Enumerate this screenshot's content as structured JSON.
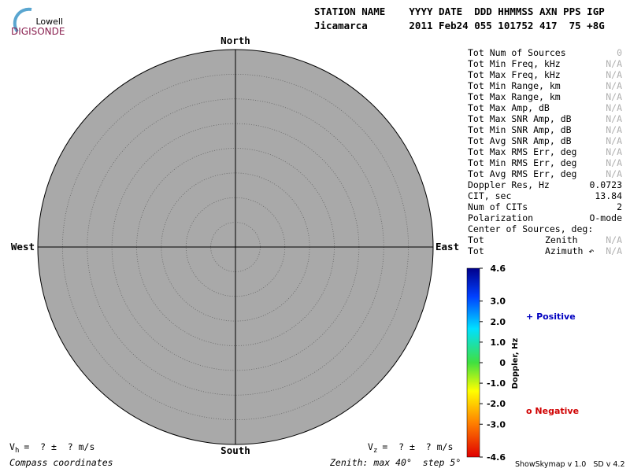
{
  "logo": {
    "line1": "Lowell",
    "line2": "DIGISONDE"
  },
  "header": {
    "labels": "STATION NAME    YYYY DATE  DDD HHMMSS AXN PPS IGP",
    "values": "Jicamarca       2011 Feb24 055 101752 417  75 +8G"
  },
  "compass": {
    "north": "North",
    "south": "South",
    "east": "East",
    "west": "West"
  },
  "stats": [
    {
      "label": "Tot Num of Sources",
      "value": "0",
      "muted": true
    },
    {
      "label": "Tot Min Freq, kHz",
      "value": "N/A",
      "muted": true
    },
    {
      "label": "Tot Max Freq, kHz",
      "value": "N/A",
      "muted": true
    },
    {
      "label": "Tot Min Range, km",
      "value": "N/A",
      "muted": true
    },
    {
      "label": "Tot Max Range, km",
      "value": "N/A",
      "muted": true
    },
    {
      "label": "Tot Max Amp, dB",
      "value": "N/A",
      "muted": true
    },
    {
      "label": "Tot Max SNR Amp, dB",
      "value": "N/A",
      "muted": true
    },
    {
      "label": "Tot Min SNR Amp, dB",
      "value": "N/A",
      "muted": true
    },
    {
      "label": "Tot Avg SNR Amp, dB",
      "value": "N/A",
      "muted": true
    },
    {
      "label": "Tot Max RMS Err, deg",
      "value": "N/A",
      "muted": true
    },
    {
      "label": "Tot Min RMS Err, deg",
      "value": "N/A",
      "muted": true
    },
    {
      "label": "Tot Avg RMS Err, deg",
      "value": "N/A",
      "muted": true
    },
    {
      "label": "Doppler Res, Hz",
      "value": "0.0723",
      "muted": false
    },
    {
      "label": "CIT, sec",
      "value": "13.84",
      "muted": false
    },
    {
      "label": "Num of CITs",
      "value": "2",
      "muted": false
    },
    {
      "label": "Polarization",
      "value": "O-mode",
      "muted": false
    }
  ],
  "center": {
    "title": "Center of Sources, deg:",
    "rows": [
      {
        "label": "Tot",
        "sub": "Zenith",
        "value": "N/A"
      },
      {
        "label": "Tot",
        "sub": "Azimuth ↶",
        "value": "N/A"
      }
    ]
  },
  "colorbar": {
    "title": "Doppler, Hz",
    "lim": [
      -4.6,
      4.6
    ],
    "ticks": [
      4.6,
      {
        "value": 3,
        "label": "3.0"
      },
      {
        "value": 2,
        "label": "2.0"
      },
      {
        "value": 1,
        "label": "1.0"
      },
      0,
      {
        "value": -1,
        "label": "-1.0"
      },
      {
        "value": -2,
        "label": "-2.0"
      },
      {
        "value": -3,
        "label": "-3.0"
      },
      -4.6
    ]
  },
  "legend": {
    "positive": {
      "symbol": "+",
      "label": "Positive",
      "color": "#0000c0"
    },
    "negative": {
      "symbol": "o",
      "label": "Negative",
      "color": "#d00000"
    }
  },
  "velocity": {
    "vh": {
      "symbol": "V",
      "sub": "h",
      "text": "=  ? ±  ? m/s"
    },
    "vz": {
      "symbol": "V",
      "sub": "z",
      "text": "=  ? ±  ? m/s"
    }
  },
  "footer": {
    "left": "Compass coordinates",
    "zenith": {
      "label": "Zenith:",
      "max_label": "max",
      "max": 40,
      "step_label": "step",
      "step": 5,
      "unit": "°"
    },
    "version": "ShowSkymap v 1.0   SD v 4.2"
  }
}
